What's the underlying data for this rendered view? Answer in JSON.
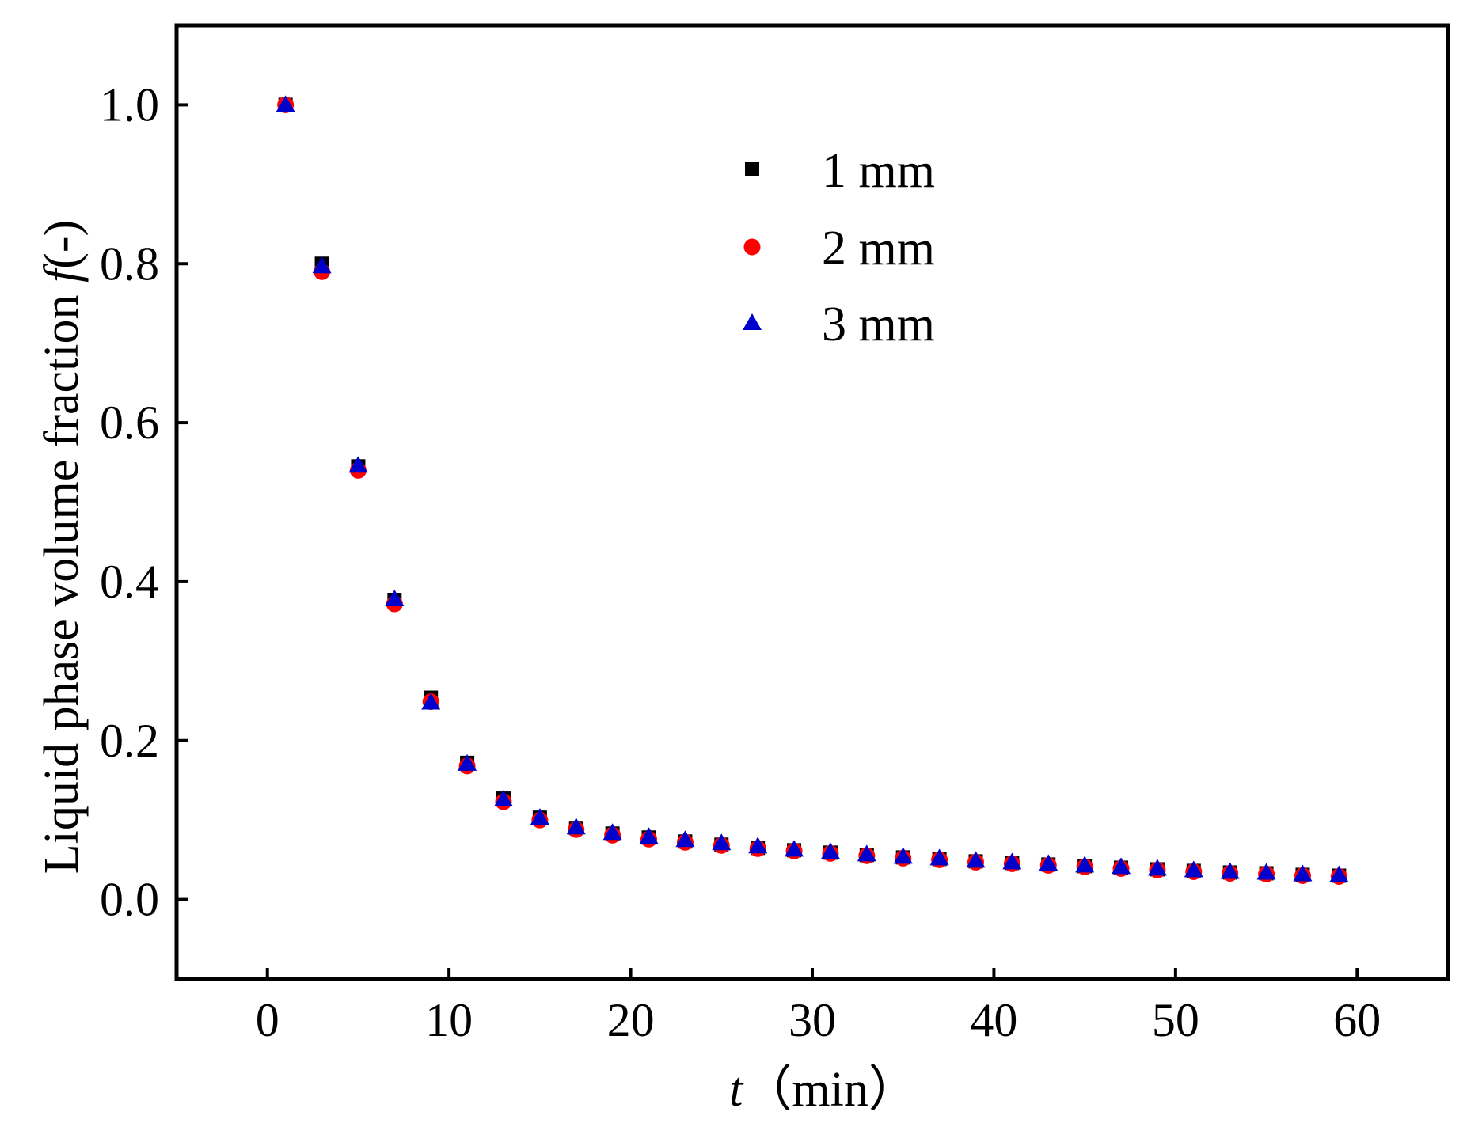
{
  "chart_data": {
    "type": "scatter",
    "title": "",
    "xlabel": {
      "var": "t",
      "unit": "（min）"
    },
    "ylabel": {
      "text": "Liquid phase volume fraction ",
      "var": "f",
      "unit": "(-)"
    },
    "xlim": [
      -5,
      65
    ],
    "ylim": [
      -0.1,
      1.1
    ],
    "xticks": [
      0,
      10,
      20,
      30,
      40,
      50,
      60
    ],
    "yticks": [
      0.0,
      0.2,
      0.4,
      0.6,
      0.8,
      1.0
    ],
    "xtick_labels": [
      "0",
      "10",
      "20",
      "30",
      "40",
      "50",
      "60"
    ],
    "ytick_labels": [
      "0.0",
      "0.2",
      "0.4",
      "0.6",
      "0.8",
      "1.0"
    ],
    "grid": false,
    "legend_position": "top-center",
    "x": [
      1,
      3,
      5,
      7,
      9,
      11,
      13,
      15,
      17,
      19,
      21,
      23,
      25,
      27,
      29,
      31,
      33,
      35,
      37,
      39,
      41,
      43,
      45,
      47,
      49,
      51,
      53,
      55,
      57,
      59
    ],
    "series": [
      {
        "name": "1 mm",
        "marker": "square",
        "color": "#000000",
        "values": [
          1.0,
          0.8,
          0.545,
          0.377,
          0.254,
          0.172,
          0.127,
          0.103,
          0.09,
          0.083,
          0.078,
          0.073,
          0.069,
          0.065,
          0.062,
          0.059,
          0.056,
          0.053,
          0.051,
          0.048,
          0.046,
          0.044,
          0.042,
          0.04,
          0.038,
          0.036,
          0.034,
          0.033,
          0.031,
          0.03
        ]
      },
      {
        "name": "2 mm",
        "marker": "circle",
        "color": "#ff0000",
        "values": [
          1.0,
          0.79,
          0.54,
          0.372,
          0.249,
          0.168,
          0.123,
          0.1,
          0.088,
          0.081,
          0.076,
          0.072,
          0.068,
          0.064,
          0.061,
          0.058,
          0.055,
          0.052,
          0.05,
          0.047,
          0.045,
          0.043,
          0.041,
          0.039,
          0.037,
          0.035,
          0.033,
          0.032,
          0.03,
          0.029
        ]
      },
      {
        "name": "3 mm",
        "marker": "triangle",
        "color": "#0000cc",
        "values": [
          1.0,
          0.797,
          0.546,
          0.378,
          0.248,
          0.171,
          0.126,
          0.103,
          0.091,
          0.084,
          0.079,
          0.075,
          0.071,
          0.067,
          0.063,
          0.06,
          0.057,
          0.054,
          0.052,
          0.049,
          0.047,
          0.045,
          0.043,
          0.041,
          0.039,
          0.037,
          0.035,
          0.034,
          0.032,
          0.031
        ]
      }
    ]
  }
}
